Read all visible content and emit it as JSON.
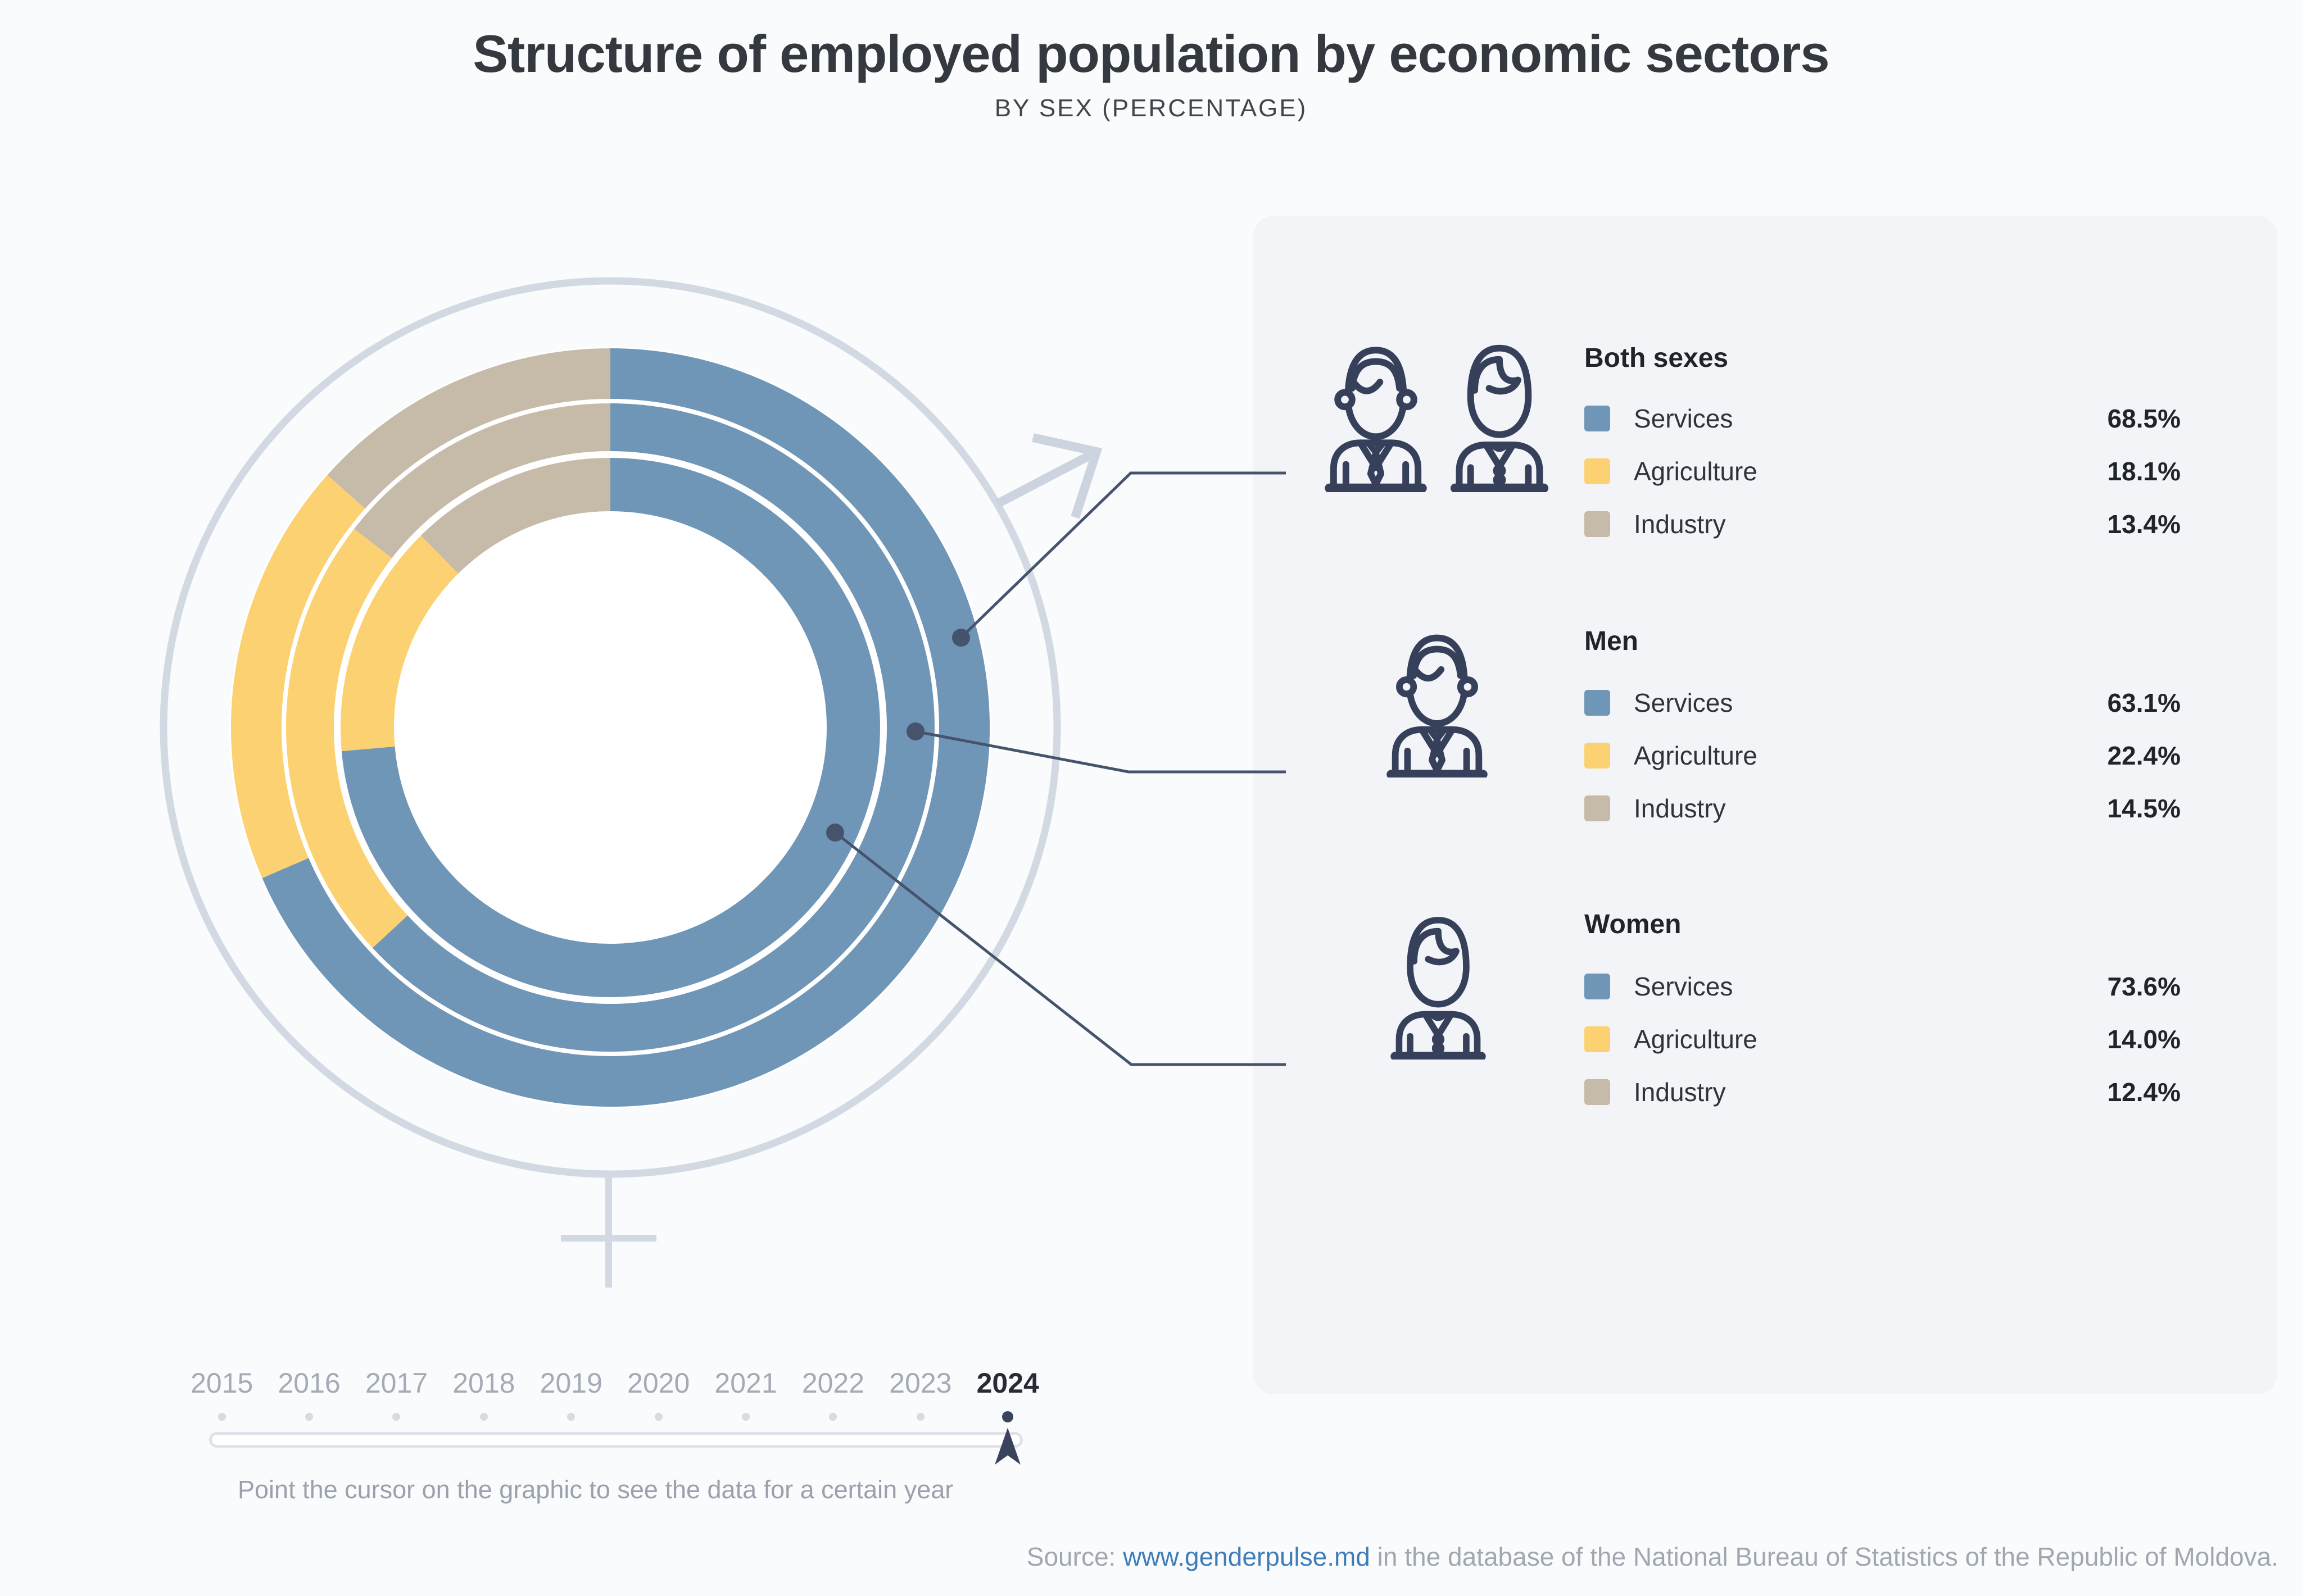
{
  "header": {
    "title": "Structure of employed population by economic sectors",
    "subtitle": "BY SEX (PERCENTAGE)"
  },
  "chart_data": {
    "type": "donut",
    "variant": "multi-ring",
    "year": "2024",
    "unit": "percent",
    "direction": "clockwise",
    "start_angle_deg": 0,
    "sectors": [
      "Services",
      "Agriculture",
      "Industry"
    ],
    "colors": {
      "Services": "#6f96b7",
      "Agriculture": "#fcd171",
      "Industry": "#c6bba9"
    },
    "rings": [
      {
        "name": "Both sexes",
        "position": "outer",
        "values": {
          "Services": 68.5,
          "Agriculture": 18.1,
          "Industry": 13.4
        }
      },
      {
        "name": "Men",
        "position": "middle",
        "values": {
          "Services": 63.1,
          "Agriculture": 22.4,
          "Industry": 14.5
        }
      },
      {
        "name": "Women",
        "position": "inner",
        "values": {
          "Services": 73.6,
          "Agriculture": 14.0,
          "Industry": 12.4
        }
      }
    ]
  },
  "legend": {
    "sections": [
      {
        "heading": "Both sexes",
        "icon": "man-woman-icon",
        "rows": [
          {
            "label": "Services",
            "value": "68.5%",
            "color": "#6f96b7"
          },
          {
            "label": "Agriculture",
            "value": "18.1%",
            "color": "#fcd171"
          },
          {
            "label": "Industry",
            "value": "13.4%",
            "color": "#c6bba9"
          }
        ]
      },
      {
        "heading": "Men",
        "icon": "man-icon",
        "rows": [
          {
            "label": "Services",
            "value": "63.1%",
            "color": "#6f96b7"
          },
          {
            "label": "Agriculture",
            "value": "22.4%",
            "color": "#fcd171"
          },
          {
            "label": "Industry",
            "value": "14.5%",
            "color": "#c6bba9"
          }
        ]
      },
      {
        "heading": "Women",
        "icon": "woman-icon",
        "rows": [
          {
            "label": "Services",
            "value": "73.6%",
            "color": "#6f96b7"
          },
          {
            "label": "Agriculture",
            "value": "14.0%",
            "color": "#fcd171"
          },
          {
            "label": "Industry",
            "value": "12.4%",
            "color": "#c6bba9"
          }
        ]
      }
    ]
  },
  "timeline": {
    "years": [
      "2015",
      "2016",
      "2017",
      "2018",
      "2019",
      "2020",
      "2021",
      "2022",
      "2023",
      "2024"
    ],
    "active_year": "2024",
    "instruction": "Point the cursor on the graphic to see the data for a certain year"
  },
  "source": {
    "prefix": "Source: ",
    "link": "www.genderpulse.md",
    "suffix": " in the database of the National Bureau of Statistics of the Republic of Moldova."
  }
}
